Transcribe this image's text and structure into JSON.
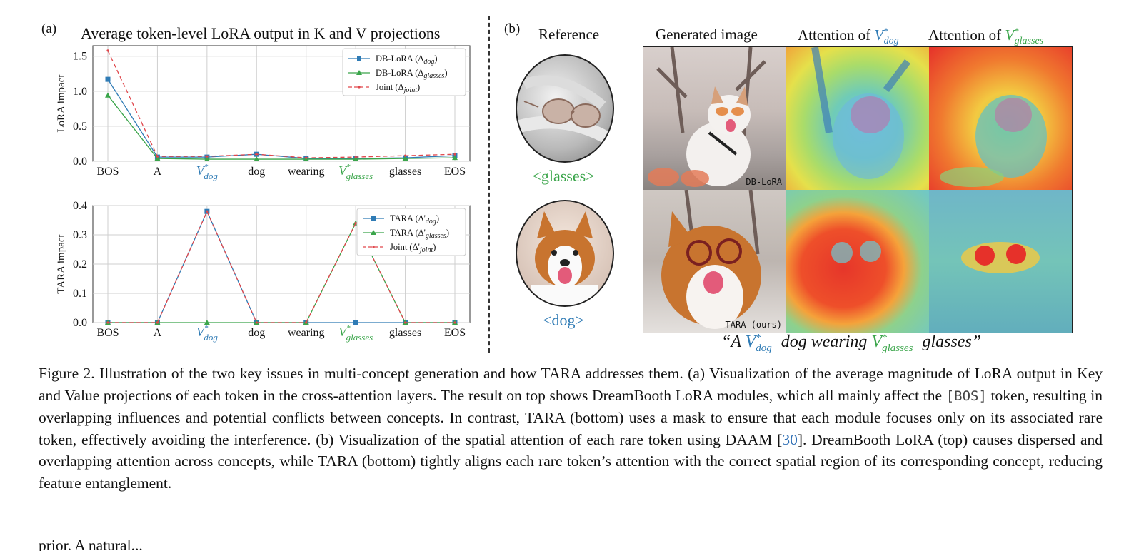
{
  "panel_a": {
    "label": "(a)",
    "title": "Average token-level LoRA output in K and V projections",
    "charts": []
  },
  "chart_data": [
    {
      "type": "line",
      "title": "Average token-level LoRA output in K and V projections",
      "ylabel": "LoRA impact",
      "categories": [
        "BOS",
        "A",
        "V*dog",
        "dog",
        "wearing",
        "V*glasses",
        "glasses",
        "EOS"
      ],
      "ylim": [
        0,
        1.6
      ],
      "yticks": [
        "0.0",
        "0.5",
        "1.0",
        "1.5"
      ],
      "grid": true,
      "legend_position": "top-right",
      "series": [
        {
          "name": "DB-LoRA (Δdog)",
          "color": "#2f7bb5",
          "marker": "square",
          "dash": false,
          "values": [
            1.17,
            0.06,
            0.06,
            0.1,
            0.04,
            0.04,
            0.05,
            0.08
          ]
        },
        {
          "name": "DB-LoRA (Δglasses)",
          "color": "#3aa54a",
          "marker": "triangle",
          "dash": false,
          "values": [
            0.94,
            0.04,
            0.03,
            0.03,
            0.03,
            0.03,
            0.04,
            0.05
          ]
        },
        {
          "name": "Joint (Δjoint)",
          "color": "#e0474c",
          "marker": "none",
          "dash": true,
          "values": [
            1.58,
            0.07,
            0.07,
            0.1,
            0.05,
            0.06,
            0.08,
            0.1
          ]
        }
      ]
    },
    {
      "type": "line",
      "ylabel": "TARA impact",
      "categories": [
        "BOS",
        "A",
        "V*dog",
        "dog",
        "wearing",
        "V*glasses",
        "glasses",
        "EOS"
      ],
      "ylim": [
        0,
        0.4
      ],
      "yticks": [
        "0.0",
        "0.1",
        "0.2",
        "0.3",
        "0.4"
      ],
      "grid": true,
      "legend_position": "top-right",
      "series": [
        {
          "name": "TARA (Δ'dog)",
          "color": "#2f7bb5",
          "marker": "square",
          "dash": false,
          "values": [
            0,
            0,
            0.38,
            0,
            0,
            0,
            0,
            0
          ]
        },
        {
          "name": "TARA (Δ'glasses)",
          "color": "#3aa54a",
          "marker": "triangle",
          "dash": false,
          "values": [
            0,
            0,
            0,
            0,
            0,
            0.34,
            0,
            0
          ]
        },
        {
          "name": "Joint (Δ'joint)",
          "color": "#e0474c",
          "marker": "none",
          "dash": true,
          "values": [
            0,
            0,
            0.38,
            0,
            0,
            0.34,
            0,
            0
          ]
        }
      ]
    }
  ],
  "panel_b": {
    "label": "(b)",
    "col_reference": "Reference",
    "col_generated": "Generated image",
    "col_attn_dog_prefix": "Attention of ",
    "col_attn_glasses_prefix": "Attention of ",
    "v_symbol": "V",
    "star": "*",
    "sub_dog": "dog",
    "sub_glasses": "glasses",
    "ref_glasses_label": "<glasses>",
    "ref_dog_label": "<dog>",
    "row1_tag": "DB-LoRA",
    "row2_tag": "TARA (ours)",
    "prompt_open": "“A ",
    "prompt_mid": " dog wearing ",
    "prompt_end": " glasses”",
    "colors": {
      "dog_blue": "#2f7bb5",
      "glasses_green": "#3aa54a"
    }
  },
  "caption": {
    "p1": "Figure 2. Illustration of the two key issues in multi-concept generation and how TARA addresses them. (a) Visualization of the average magnitude of LoRA output in Key and Value projections of each token in the cross-attention layers. The result on top shows DreamBooth LoRA modules, which all mainly affect the ",
    "bos_token": "[BOS]",
    "p2": " token, resulting in overlapping influences and potential conflicts between concepts. In contrast, TARA (bottom) uses a mask to ensure that each module focuses only on its associated rare token, effectively avoiding the interference. (b) Visualization of the spatial attention of each rare token using DAAM [",
    "cite": "30",
    "p3": "]. DreamBooth LoRA (top) causes dispersed and overlapping attention across concepts, while TARA (bottom) tightly aligns each rare token’s attention with the correct spatial region of its corresponding concept, reducing feature entanglement."
  },
  "body_fragment": "prior. A natural..."
}
